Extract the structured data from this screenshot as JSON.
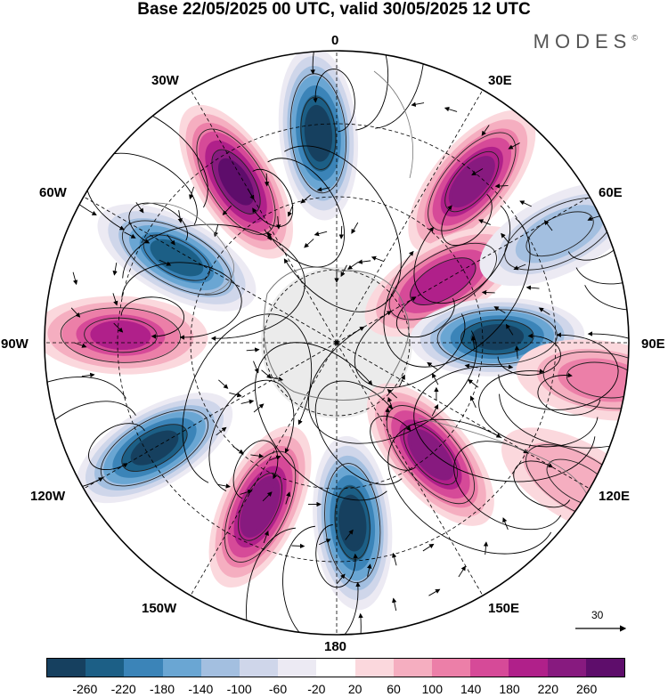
{
  "header": {
    "title": "Base 22/05/2025 00 UTC, valid 30/05/2025 12 UTC",
    "brand": "MODES",
    "brand_mark": "©"
  },
  "longitude_labels": {
    "l0": "0",
    "l30e": "30E",
    "l60e": "60E",
    "l90e": "90E",
    "l120e": "120E",
    "l150e": "150E",
    "l180": "180",
    "l150w": "150W",
    "l120w": "120W",
    "l90w": "90W",
    "l60w": "60W",
    "l30w": "30W"
  },
  "vector_scale": {
    "value": "30"
  },
  "colorbar": {
    "colors": [
      "#16405f",
      "#1c5f86",
      "#3b84b8",
      "#6aa6d3",
      "#a3bfe0",
      "#cfd6ea",
      "#eceaf3",
      "#ffffff",
      "#fbd8dd",
      "#f5aec0",
      "#ec7fa8",
      "#d64a98",
      "#b0208a",
      "#871a7f",
      "#5e0d6b"
    ],
    "ticks": [
      "-260",
      "-220",
      "-180",
      "-140",
      "-100",
      "-60",
      "-20",
      "20",
      "60",
      "100",
      "140",
      "180",
      "220",
      "260"
    ]
  },
  "map": {
    "anomaly_centers": [
      {
        "lon": 355,
        "r": 0.72,
        "value": -280
      },
      {
        "lon": 40,
        "r": 0.72,
        "value": 240
      },
      {
        "lon": 60,
        "r": 0.42,
        "value": 210
      },
      {
        "lon": 88,
        "r": 0.55,
        "value": -270
      },
      {
        "lon": 98,
        "r": 0.92,
        "value": 110
      },
      {
        "lon": 64,
        "r": 0.85,
        "value": -120
      },
      {
        "lon": 140,
        "r": 0.5,
        "value": 240
      },
      {
        "lon": 175,
        "r": 0.62,
        "value": -280
      },
      {
        "lon": 205,
        "r": 0.62,
        "value": 250
      },
      {
        "lon": 240,
        "r": 0.72,
        "value": -270
      },
      {
        "lon": 272,
        "r": 0.74,
        "value": 180
      },
      {
        "lon": 298,
        "r": 0.62,
        "value": -230
      },
      {
        "lon": 328,
        "r": 0.65,
        "value": 270
      },
      {
        "lon": 120,
        "r": 0.96,
        "value": 90
      }
    ]
  }
}
